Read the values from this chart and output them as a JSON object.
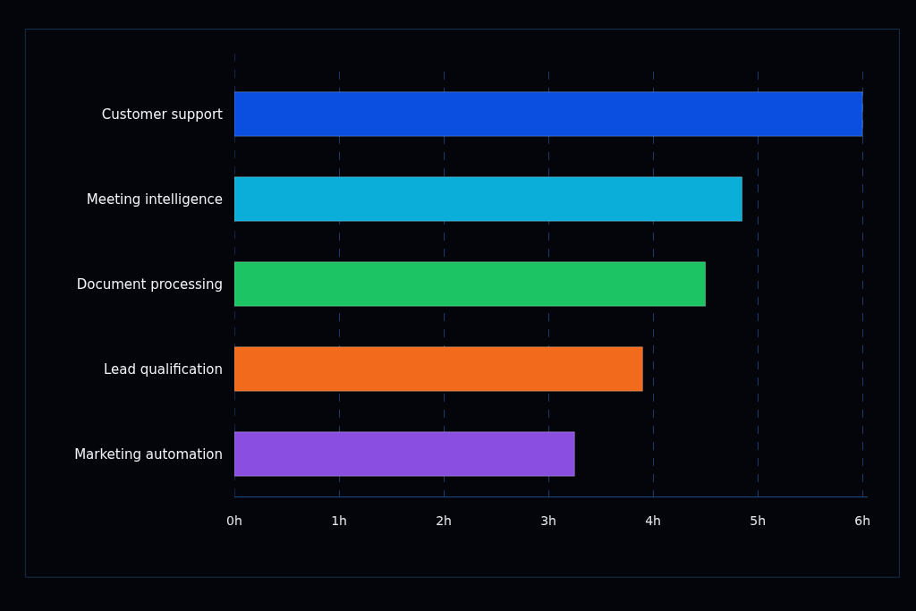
{
  "chart_data": {
    "type": "bar",
    "orientation": "horizontal",
    "categories": [
      "Customer support",
      "Meeting intelligence",
      "Document processing",
      "Lead qualification",
      "Marketing automation"
    ],
    "values": [
      6.0,
      4.85,
      4.5,
      3.9,
      3.25
    ],
    "colors": [
      "#0a4fe0",
      "#0aaed8",
      "#1cc463",
      "#f26a1b",
      "#8a4fe0"
    ],
    "xlim": [
      0,
      6.05
    ],
    "xticks": [
      {
        "value": 0,
        "label": "0h"
      },
      {
        "value": 1,
        "label": "1h"
      },
      {
        "value": 2,
        "label": "2h"
      },
      {
        "value": 3,
        "label": "3h"
      },
      {
        "value": 4,
        "label": "4h"
      },
      {
        "value": 5,
        "label": "5h"
      },
      {
        "value": 6,
        "label": "6h"
      }
    ],
    "grid": "x"
  }
}
